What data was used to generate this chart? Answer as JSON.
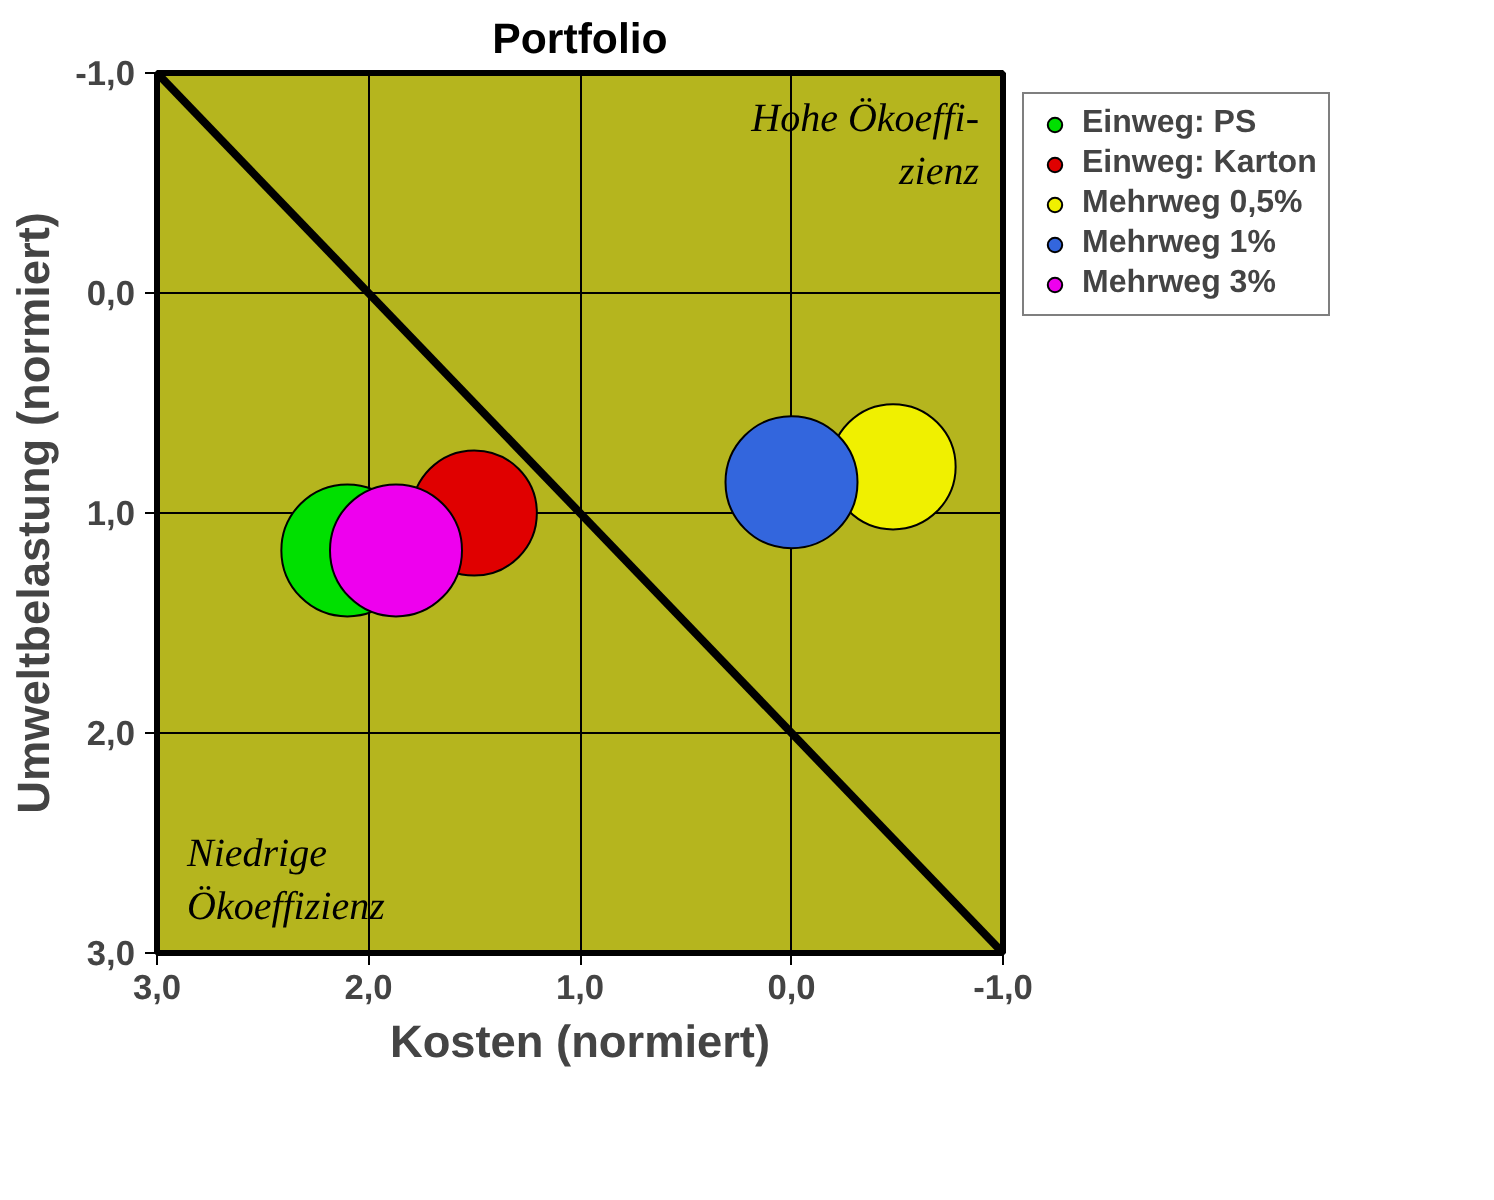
{
  "chart_data": {
    "type": "bubble",
    "title": "Portfolio",
    "xlabel": "Kosten (normiert)",
    "ylabel": "Umweltbelastung (normiert)",
    "xlim": [
      3,
      -1
    ],
    "ylim": [
      3,
      -1
    ],
    "xticks": [
      {
        "value": 3,
        "label": "3,0"
      },
      {
        "value": 2,
        "label": "2,0"
      },
      {
        "value": 1,
        "label": "1,0"
      },
      {
        "value": 0,
        "label": "0,0"
      },
      {
        "value": -1,
        "label": "-1,0"
      }
    ],
    "yticks": [
      {
        "value": 3,
        "label": "3,0"
      },
      {
        "value": 2,
        "label": "2,0"
      },
      {
        "value": 1,
        "label": "1,0"
      },
      {
        "value": 0,
        "label": "0,0"
      },
      {
        "value": -1,
        "label": "-1,0"
      }
    ],
    "grid": true,
    "legend": "top right",
    "annotations": [
      "Hohe Ökoeffi-\nzienz",
      "Niedrige\nÖkoeffizienz"
    ],
    "series": [
      {
        "type": "line",
        "x": [
          3,
          -1
        ],
        "values": [
          -1,
          3
        ],
        "color": "#000000"
      },
      {
        "name": "Einweg: PS",
        "color": "#00e000",
        "x": [
          2.1
        ],
        "values": [
          1.17
        ],
        "sizes": [
          1
        ]
      },
      {
        "name": "Einweg: Karton",
        "color": "#e00000",
        "x": [
          1.5
        ],
        "values": [
          1.0
        ],
        "sizes": [
          0.9
        ]
      },
      {
        "name": "Mehrweg 0,5%",
        "color": "#f0f000",
        "x": [
          -0.48
        ],
        "values": [
          0.79
        ],
        "sizes": [
          0.9
        ]
      },
      {
        "name": "Mehrweg 1%",
        "color": "#3366dd",
        "x": [
          0.0
        ],
        "values": [
          0.86
        ],
        "sizes": [
          1
        ]
      },
      {
        "name": "Mehrweg 3%",
        "color": "#ee00ee",
        "x": [
          1.87
        ],
        "values": [
          1.17
        ],
        "sizes": [
          1
        ]
      }
    ]
  }
}
